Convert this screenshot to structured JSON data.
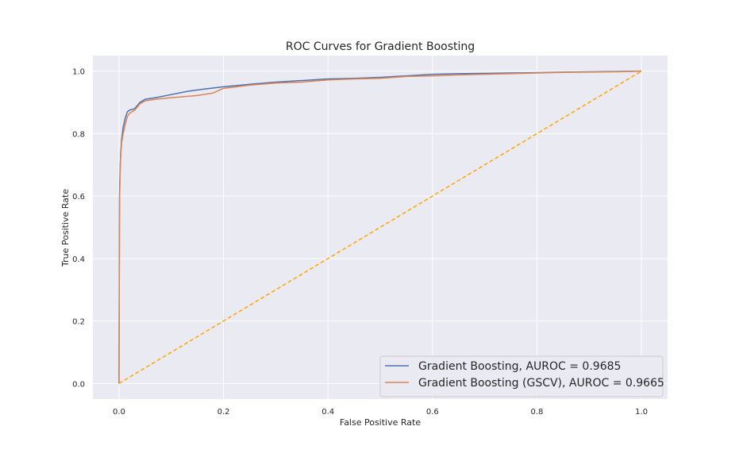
{
  "chart_data": {
    "type": "line",
    "title": "ROC Curves for Gradient Boosting",
    "xlabel": "False Positive Rate",
    "ylabel": "True Positive Rate",
    "xlim": [
      -0.05,
      1.05
    ],
    "ylim": [
      -0.05,
      1.05
    ],
    "xticks": [
      "0.0",
      "0.2",
      "0.4",
      "0.6",
      "0.8",
      "1.0"
    ],
    "yticks": [
      "0.0",
      "0.2",
      "0.4",
      "0.6",
      "0.8",
      "1.0"
    ],
    "grid": true,
    "legend_position": "lower-right",
    "series": [
      {
        "name": "Gradient Boosting, AUROC = 0.9685",
        "color": "#4c72b0",
        "style": "solid",
        "x": [
          0,
          0.001,
          0.002,
          0.003,
          0.005,
          0.008,
          0.012,
          0.016,
          0.02,
          0.03,
          0.04,
          0.05,
          0.07,
          0.1,
          0.13,
          0.16,
          0.2,
          0.25,
          0.3,
          0.35,
          0.4,
          0.45,
          0.5,
          0.55,
          0.6,
          0.65,
          0.7,
          0.75,
          0.8,
          0.85,
          0.9,
          0.95,
          1.0
        ],
        "y": [
          0,
          0.6,
          0.68,
          0.73,
          0.78,
          0.82,
          0.85,
          0.87,
          0.875,
          0.88,
          0.9,
          0.91,
          0.915,
          0.925,
          0.935,
          0.942,
          0.95,
          0.958,
          0.965,
          0.97,
          0.975,
          0.977,
          0.98,
          0.985,
          0.99,
          0.992,
          0.993,
          0.994,
          0.995,
          0.997,
          0.998,
          0.999,
          1.0
        ]
      },
      {
        "name": "Gradient Boosting (GSCV), AUROC = 0.9665",
        "color": "#dd8452",
        "style": "solid",
        "x": [
          0,
          0.001,
          0.002,
          0.003,
          0.005,
          0.008,
          0.012,
          0.016,
          0.02,
          0.03,
          0.04,
          0.05,
          0.07,
          0.1,
          0.15,
          0.18,
          0.2,
          0.25,
          0.3,
          0.35,
          0.4,
          0.45,
          0.5,
          0.55,
          0.6,
          0.65,
          0.7,
          0.75,
          0.8,
          0.85,
          0.9,
          0.95,
          1.0
        ],
        "y": [
          0,
          0.58,
          0.66,
          0.72,
          0.77,
          0.8,
          0.83,
          0.855,
          0.865,
          0.875,
          0.895,
          0.905,
          0.91,
          0.915,
          0.922,
          0.93,
          0.945,
          0.955,
          0.962,
          0.965,
          0.972,
          0.975,
          0.977,
          0.983,
          0.985,
          0.988,
          0.99,
          0.992,
          0.994,
          0.996,
          0.997,
          0.998,
          1.0
        ]
      },
      {
        "name": "",
        "color": "#ffa500",
        "style": "dashed",
        "x": [
          0,
          1
        ],
        "y": [
          0,
          1
        ]
      }
    ]
  }
}
